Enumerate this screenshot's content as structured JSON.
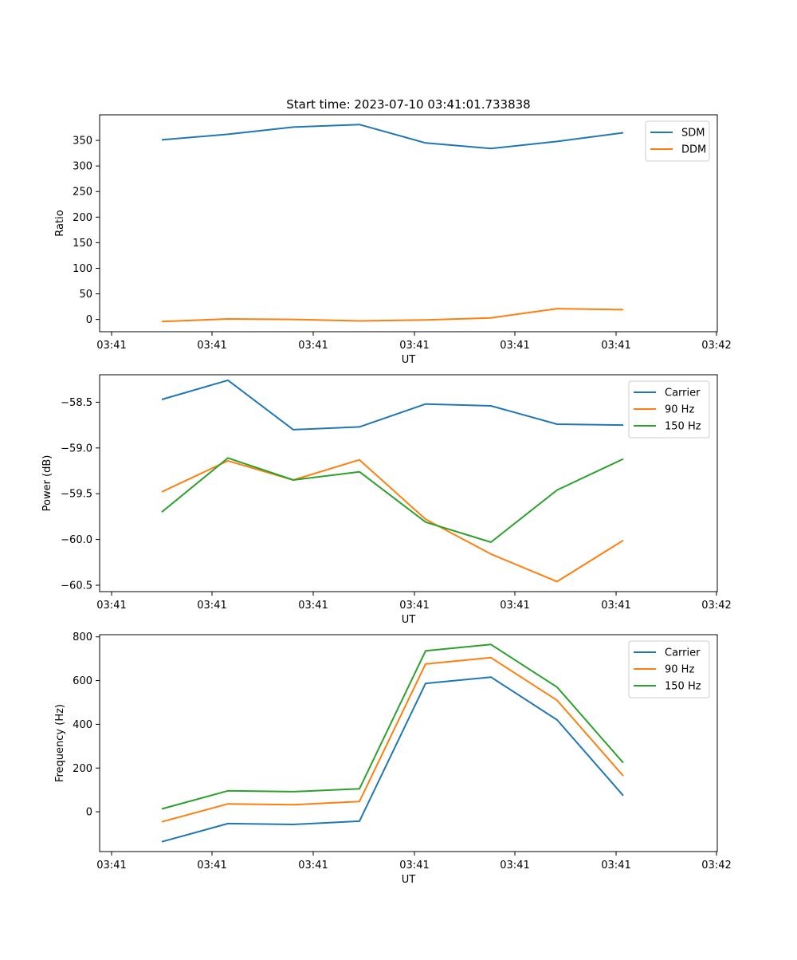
{
  "figure": {
    "title": "Start time: 2023-07-10 03:41:01.733838"
  },
  "chart_data": [
    {
      "type": "line",
      "title": "Start time: 2023-07-10 03:41:01.733838",
      "xlabel": "UT",
      "ylabel": "Ratio",
      "x_tick_labels": [
        "03:41",
        "03:41",
        "03:41",
        "03:41",
        "03:41",
        "03:41",
        "03:42"
      ],
      "y_ticks": [
        0,
        50,
        100,
        150,
        200,
        250,
        300,
        350
      ],
      "ylim": [
        -24,
        400
      ],
      "legend_position": "upper-right",
      "series": [
        {
          "name": "SDM",
          "color": "#1f77b4",
          "values": [
            351,
            362,
            376,
            381,
            345,
            334,
            348,
            365
          ]
        },
        {
          "name": "DDM",
          "color": "#ff7f0e",
          "values": [
            -4,
            1,
            0,
            -3,
            -1,
            3,
            21,
            19
          ]
        }
      ]
    },
    {
      "type": "line",
      "title": "",
      "xlabel": "UT",
      "ylabel": "Power (dB)",
      "x_tick_labels": [
        "03:41",
        "03:41",
        "03:41",
        "03:41",
        "03:41",
        "03:41",
        "03:42"
      ],
      "y_ticks": [
        -60.5,
        -60.0,
        -59.5,
        -59.0,
        -58.5
      ],
      "y_tick_labels": [
        "−60.5",
        "−60.0",
        "−59.5",
        "−59.0",
        "−58.5"
      ],
      "ylim": [
        -60.57,
        -58.2
      ],
      "legend_position": "upper-right",
      "series": [
        {
          "name": "Carrier",
          "color": "#1f77b4",
          "values": [
            -58.47,
            -58.26,
            -58.8,
            -58.77,
            -58.52,
            -58.54,
            -58.74,
            -58.75
          ]
        },
        {
          "name": "90 Hz",
          "color": "#ff7f0e",
          "values": [
            -59.48,
            -59.14,
            -59.35,
            -59.13,
            -59.78,
            -60.16,
            -60.46,
            -60.01
          ]
        },
        {
          "name": "150 Hz",
          "color": "#2ca02c",
          "values": [
            -59.7,
            -59.11,
            -59.35,
            -59.26,
            -59.81,
            -60.03,
            -59.46,
            -59.12
          ]
        }
      ]
    },
    {
      "type": "line",
      "title": "",
      "xlabel": "UT",
      "ylabel": "Frequency (Hz)",
      "x_tick_labels": [
        "03:41",
        "03:41",
        "03:41",
        "03:41",
        "03:41",
        "03:41",
        "03:42"
      ],
      "y_ticks": [
        0,
        200,
        400,
        600,
        800
      ],
      "ylim": [
        -182,
        810
      ],
      "legend_position": "upper-right",
      "series": [
        {
          "name": "Carrier",
          "color": "#1f77b4",
          "values": [
            -137,
            -54,
            -58,
            -43,
            587,
            616,
            420,
            74
          ]
        },
        {
          "name": "90 Hz",
          "color": "#ff7f0e",
          "values": [
            -46,
            36,
            32,
            47,
            676,
            705,
            510,
            164
          ]
        },
        {
          "name": "150 Hz",
          "color": "#2ca02c",
          "values": [
            13,
            96,
            92,
            105,
            736,
            765,
            570,
            224
          ]
        }
      ]
    }
  ]
}
